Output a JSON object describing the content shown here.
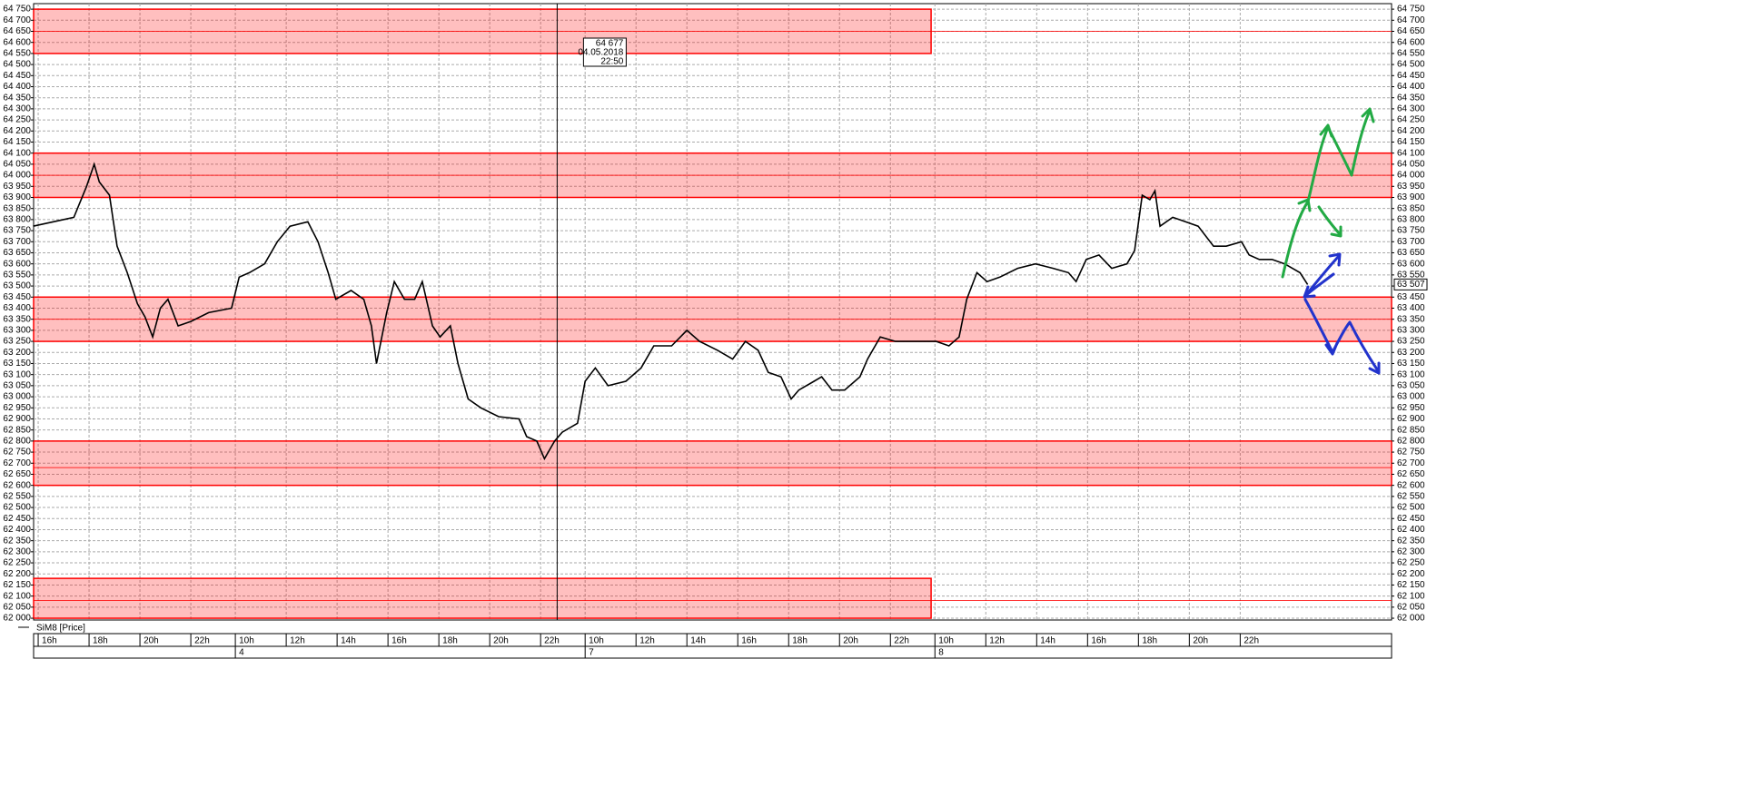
{
  "chart_data": {
    "type": "line",
    "series": [
      {
        "name": "SiM8 [Price]",
        "color": "#000000",
        "x": [
          -0.2,
          0.6,
          1.4,
          1.9,
          2.2,
          2.4,
          2.8,
          3.1,
          3.5,
          3.9,
          4.2,
          4.5,
          4.8,
          5.1,
          5.5,
          6.0,
          6.7,
          7.6,
          7.9,
          8.3,
          8.9,
          9.4,
          9.9,
          10.6,
          11.0,
          11.4,
          11.7,
          12.3,
          12.8,
          13.1,
          13.3,
          13.7,
          14.0,
          14.4,
          14.8,
          15.1,
          15.5,
          15.8,
          16.2,
          16.5,
          16.9,
          17.4,
          18.1,
          18.9,
          19.2,
          19.6,
          19.9,
          20.3,
          20.6,
          21.2,
          21.5,
          21.9,
          22.4,
          23.1,
          23.7,
          24.2,
          24.9,
          25.5,
          26.0,
          26.7,
          27.3,
          27.8,
          28.3,
          28.7,
          29.2,
          29.6,
          29.9,
          30.5,
          30.8,
          31.2,
          31.7,
          32.3,
          32.6,
          33.1,
          33.7,
          34.2,
          34.8,
          35.3,
          35.8,
          36.2,
          36.5,
          36.9,
          37.3,
          37.8,
          38.5,
          39.2,
          39.9,
          40.5,
          40.8,
          41.2,
          41.7,
          42.2,
          42.8,
          43.1,
          43.4,
          43.7,
          43.9,
          44.1,
          44.6,
          45.1,
          45.6,
          46.2,
          46.7,
          47.3,
          47.6,
          48.0,
          48.5,
          49.0,
          49.6,
          49.9
        ],
        "values": [
          63770,
          63790,
          63810,
          63950,
          64050,
          63970,
          63910,
          63680,
          63560,
          63420,
          63360,
          63270,
          63400,
          63440,
          63320,
          63340,
          63380,
          63400,
          63540,
          63560,
          63600,
          63700,
          63770,
          63790,
          63700,
          63560,
          63440,
          63480,
          63440,
          63320,
          63150,
          63380,
          63520,
          63440,
          63440,
          63520,
          63320,
          63270,
          63320,
          63150,
          62990,
          62950,
          62910,
          62900,
          62820,
          62800,
          62720,
          62800,
          62840,
          62880,
          63070,
          63130,
          63050,
          63070,
          63130,
          63230,
          63230,
          63300,
          63250,
          63210,
          63170,
          63250,
          63210,
          63110,
          63090,
          62990,
          63030,
          63070,
          63090,
          63030,
          63030,
          63090,
          63170,
          63270,
          63250,
          63250,
          63250,
          63250,
          63230,
          63270,
          63440,
          63560,
          63520,
          63540,
          63580,
          63600,
          63580,
          63560,
          63520,
          63620,
          63640,
          63580,
          63600,
          63660,
          63910,
          63890,
          63930,
          63770,
          63810,
          63790,
          63770,
          63680,
          63680,
          63700,
          63640,
          63620,
          63620,
          63600,
          63560,
          63507
        ]
      }
    ],
    "xlim": [
      -0.18,
      53.2
    ],
    "xticks": [
      {
        "value": 0,
        "label": "16h"
      },
      {
        "value": 2,
        "label": "18h"
      },
      {
        "value": 4,
        "label": "20h"
      },
      {
        "value": 6,
        "label": "22h"
      },
      {
        "value": 7.75,
        "label": "10h"
      },
      {
        "value": 9.75,
        "label": "12h"
      },
      {
        "value": 11.75,
        "label": "14h"
      },
      {
        "value": 13.75,
        "label": "16h"
      },
      {
        "value": 15.75,
        "label": "18h"
      },
      {
        "value": 17.75,
        "label": "20h"
      },
      {
        "value": 19.75,
        "label": "22h"
      },
      {
        "value": 21.5,
        "label": "10h"
      },
      {
        "value": 23.5,
        "label": "12h"
      },
      {
        "value": 25.5,
        "label": "14h"
      },
      {
        "value": 27.5,
        "label": "16h"
      },
      {
        "value": 29.5,
        "label": "18h"
      },
      {
        "value": 31.5,
        "label": "20h"
      },
      {
        "value": 33.5,
        "label": "22h"
      },
      {
        "value": 35.25,
        "label": "10h"
      },
      {
        "value": 37.25,
        "label": "12h"
      },
      {
        "value": 39.25,
        "label": "14h"
      },
      {
        "value": 41.25,
        "label": "16h"
      },
      {
        "value": 43.25,
        "label": "18h"
      },
      {
        "value": 45.25,
        "label": "20h"
      },
      {
        "value": 47.25,
        "label": "22h"
      }
    ],
    "days": [
      {
        "x": 7.75,
        "label": "4"
      },
      {
        "x": 21.5,
        "label": "7"
      },
      {
        "x": 35.25,
        "label": "8"
      }
    ],
    "ylim": [
      61992,
      64775
    ],
    "yticks": [
      {
        "value": 62000,
        "label": "62 000"
      },
      {
        "value": 62050,
        "label": "62 050"
      },
      {
        "value": 62100,
        "label": "62 100"
      },
      {
        "value": 62150,
        "label": "62 150"
      },
      {
        "value": 62200,
        "label": "62 200"
      },
      {
        "value": 62250,
        "label": "62 250"
      },
      {
        "value": 62300,
        "label": "62 300"
      },
      {
        "value": 62350,
        "label": "62 350"
      },
      {
        "value": 62400,
        "label": "62 400"
      },
      {
        "value": 62450,
        "label": "62 450"
      },
      {
        "value": 62500,
        "label": "62 500"
      },
      {
        "value": 62550,
        "label": "62 550"
      },
      {
        "value": 62600,
        "label": "62 600"
      },
      {
        "value": 62650,
        "label": "62 650"
      },
      {
        "value": 62700,
        "label": "62 700"
      },
      {
        "value": 62750,
        "label": "62 750"
      },
      {
        "value": 62800,
        "label": "62 800"
      },
      {
        "value": 62850,
        "label": "62 850"
      },
      {
        "value": 62900,
        "label": "62 900"
      },
      {
        "value": 62950,
        "label": "62 950"
      },
      {
        "value": 63000,
        "label": "63 000"
      },
      {
        "value": 63050,
        "label": "63 050"
      },
      {
        "value": 63100,
        "label": "63 100"
      },
      {
        "value": 63150,
        "label": "63 150"
      },
      {
        "value": 63200,
        "label": "63 200"
      },
      {
        "value": 63250,
        "label": "63 250"
      },
      {
        "value": 63300,
        "label": "63 300"
      },
      {
        "value": 63350,
        "label": "63 350"
      },
      {
        "value": 63400,
        "label": "63 400"
      },
      {
        "value": 63450,
        "label": "63 450"
      },
      {
        "value": 63500,
        "label": "63 500"
      },
      {
        "value": 63550,
        "label": "63 550"
      },
      {
        "value": 63600,
        "label": "63 600"
      },
      {
        "value": 63650,
        "label": "63 650"
      },
      {
        "value": 63700,
        "label": "63 700"
      },
      {
        "value": 63750,
        "label": "63 750"
      },
      {
        "value": 63800,
        "label": "63 800"
      },
      {
        "value": 63850,
        "label": "63 850"
      },
      {
        "value": 63900,
        "label": "63 900"
      },
      {
        "value": 63950,
        "label": "63 950"
      },
      {
        "value": 64000,
        "label": "64 000"
      },
      {
        "value": 64050,
        "label": "64 050"
      },
      {
        "value": 64100,
        "label": "64 100"
      },
      {
        "value": 64150,
        "label": "64 150"
      },
      {
        "value": 64200,
        "label": "64 200"
      },
      {
        "value": 64250,
        "label": "64 250"
      },
      {
        "value": 64300,
        "label": "64 300"
      },
      {
        "value": 64350,
        "label": "64 350"
      },
      {
        "value": 64400,
        "label": "64 400"
      },
      {
        "value": 64450,
        "label": "64 450"
      },
      {
        "value": 64500,
        "label": "64 500"
      },
      {
        "value": 64550,
        "label": "64 550"
      },
      {
        "value": 64600,
        "label": "64 600"
      },
      {
        "value": 64650,
        "label": "64 650"
      },
      {
        "value": 64700,
        "label": "64 700"
      },
      {
        "value": 64750,
        "label": "64 750"
      }
    ],
    "grid": true,
    "zones": [
      {
        "low": 64550,
        "high": 64750,
        "mid": 64650,
        "x_end": 35.1,
        "color": "#ff0000"
      },
      {
        "low": 63900,
        "high": 64100,
        "mid": 64000,
        "color": "#ff0000"
      },
      {
        "low": 63250,
        "high": 63450,
        "mid": 63350,
        "color": "#ff0000"
      },
      {
        "low": 62600,
        "high": 62800,
        "mid": 62680,
        "color": "#ff0000"
      },
      {
        "low": 62000,
        "high": 62180,
        "mid": 62080,
        "x_end": 35.1,
        "color": "#ff0000"
      }
    ],
    "crosshair": {
      "x": 20.4,
      "price": "64 677",
      "date": "04.05.2018",
      "time": "22:50"
    },
    "last_price": {
      "value": 63507,
      "label": "63 507"
    }
  }
}
